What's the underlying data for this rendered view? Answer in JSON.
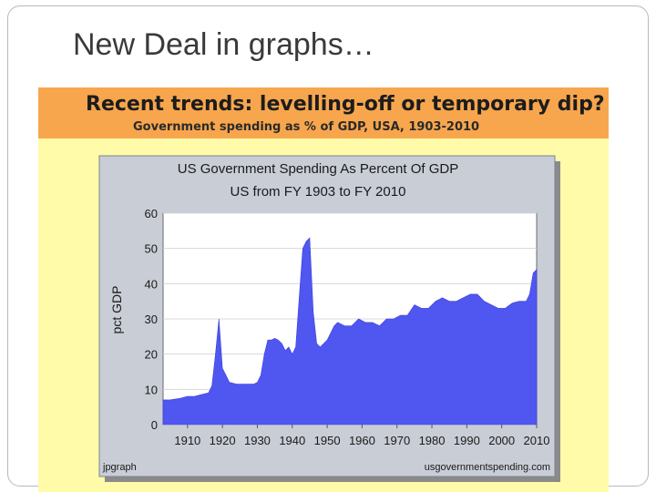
{
  "slide": {
    "title": "New Deal in graphs…"
  },
  "figure": {
    "header_title": "Recent trends: levelling-off or temporary dip?",
    "header_subtitle": "Government spending as % of GDP, USA, 1903-2010"
  },
  "colors": {
    "header_bg": "#f7a64e",
    "panel_bg": "#fffba8",
    "chart_frame": "#c9cdd6",
    "area_fill": "#4f57f0"
  },
  "chart_data": {
    "type": "area",
    "title": "US Government Spending As Percent Of GDP",
    "subtitle": "US from FY 1903 to FY 2010",
    "xlabel": "",
    "ylabel": "pct GDP",
    "xlim": [
      1903,
      2010
    ],
    "ylim": [
      0,
      60
    ],
    "y_ticks": [
      "0",
      "10",
      "20",
      "30",
      "40",
      "50",
      "60"
    ],
    "x_ticks": [
      "1910",
      "1920",
      "1930",
      "1940",
      "1950",
      "1960",
      "1970",
      "1980",
      "1990",
      "2000",
      "2010"
    ],
    "credit_left": "jpgraph",
    "credit_right": "usgovernmentspending.com",
    "series": [
      {
        "name": "Government spending",
        "x": [
          1903,
          1905,
          1908,
          1910,
          1912,
          1914,
          1916,
          1917,
          1918,
          1919,
          1920,
          1921,
          1922,
          1924,
          1927,
          1929,
          1930,
          1931,
          1932,
          1933,
          1934,
          1935,
          1936,
          1937,
          1938,
          1939,
          1940,
          1941,
          1942,
          1943,
          1944,
          1945,
          1946,
          1947,
          1948,
          1950,
          1952,
          1953,
          1955,
          1957,
          1959,
          1961,
          1963,
          1965,
          1967,
          1969,
          1971,
          1973,
          1975,
          1977,
          1979,
          1981,
          1983,
          1985,
          1987,
          1989,
          1991,
          1993,
          1995,
          1997,
          1999,
          2001,
          2003,
          2005,
          2007,
          2008,
          2009,
          2010
        ],
        "values": [
          7,
          7,
          7.5,
          8,
          8,
          8.5,
          9,
          11,
          20,
          30,
          16,
          14,
          12,
          11.5,
          11.5,
          11.5,
          12,
          14,
          20,
          24,
          24,
          24.5,
          24,
          23,
          21,
          22,
          20,
          22,
          36,
          50,
          52,
          53,
          32,
          23,
          22,
          24,
          28,
          29,
          28,
          28,
          30,
          29,
          29,
          28,
          30,
          30,
          31,
          31,
          34,
          33,
          33,
          35,
          36,
          35,
          35,
          36,
          37,
          37,
          35,
          34,
          33,
          33,
          34.5,
          35,
          35,
          37,
          43,
          44
        ]
      }
    ]
  }
}
